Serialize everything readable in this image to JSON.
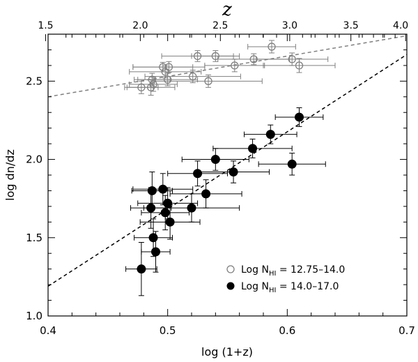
{
  "chart_data": {
    "type": "scatter",
    "title": "",
    "xlabel": "log (1+z)",
    "ylabel": "log dn/dz",
    "top_axis_label": "z",
    "xlim": [
      0.4,
      0.7
    ],
    "ylim": [
      1.0,
      2.8
    ],
    "x_ticks": [
      "0.4",
      "0.5",
      "0.6",
      "0.7"
    ],
    "y_ticks": [
      "1.0",
      "1.5",
      "2.0",
      "2.5"
    ],
    "top_ticks": [
      "1.5",
      "2.0",
      "2.5",
      "3.0",
      "3.5",
      "4.0"
    ],
    "legend_position": "bottom-right",
    "series": [
      {
        "name": "Log N_HI = 12.75-14.0",
        "legend_prefix": "Log N",
        "legend_sub": "HI",
        "legend_suffix": " = 12.75–14.0",
        "marker": "open-circle",
        "color": "#7f7f7f",
        "points": [
          {
            "x": 0.478,
            "y": 2.46,
            "xerr": 0.014,
            "yerr": 0.04
          },
          {
            "x": 0.486,
            "y": 2.46,
            "xerr": 0.02,
            "yerr": 0.05
          },
          {
            "x": 0.487,
            "y": 2.51,
            "xerr": 0.015,
            "yerr": 0.04
          },
          {
            "x": 0.488,
            "y": 2.48,
            "xerr": 0.02,
            "yerr": 0.045
          },
          {
            "x": 0.496,
            "y": 2.59,
            "xerr": 0.025,
            "yerr": 0.03
          },
          {
            "x": 0.498,
            "y": 2.56,
            "xerr": 0.03,
            "yerr": 0.04
          },
          {
            "x": 0.5,
            "y": 2.51,
            "xerr": 0.025,
            "yerr": 0.04
          },
          {
            "x": 0.501,
            "y": 2.59,
            "xerr": 0.03,
            "yerr": 0.035
          },
          {
            "x": 0.521,
            "y": 2.53,
            "xerr": 0.04,
            "yerr": 0.04
          },
          {
            "x": 0.525,
            "y": 2.66,
            "xerr": 0.03,
            "yerr": 0.035
          },
          {
            "x": 0.534,
            "y": 2.5,
            "xerr": 0.045,
            "yerr": 0.04
          },
          {
            "x": 0.54,
            "y": 2.66,
            "xerr": 0.02,
            "yerr": 0.035
          },
          {
            "x": 0.556,
            "y": 2.6,
            "xerr": 0.025,
            "yerr": 0.04
          },
          {
            "x": 0.572,
            "y": 2.64,
            "xerr": 0.03,
            "yerr": 0.035
          },
          {
            "x": 0.587,
            "y": 2.72,
            "xerr": 0.02,
            "yerr": 0.04
          },
          {
            "x": 0.604,
            "y": 2.64,
            "xerr": 0.03,
            "yerr": 0.04
          },
          {
            "x": 0.61,
            "y": 2.6,
            "xerr": 0.03,
            "yerr": 0.045
          }
        ],
        "fit": {
          "x": [
            0.4,
            0.7
          ],
          "y": [
            2.4,
            2.79
          ]
        }
      },
      {
        "name": "Log N_HI = 14.0-17.0",
        "legend_prefix": "Log N",
        "legend_sub": "HI",
        "legend_suffix": " = 14.0–17.0",
        "marker": "filled-circle",
        "color": "#000000",
        "points": [
          {
            "x": 0.478,
            "y": 1.3,
            "xerr": 0.013,
            "yerr": 0.17
          },
          {
            "x": 0.486,
            "y": 1.69,
            "xerr": 0.017,
            "yerr": 0.13
          },
          {
            "x": 0.487,
            "y": 1.8,
            "xerr": 0.017,
            "yerr": 0.12
          },
          {
            "x": 0.488,
            "y": 1.5,
            "xerr": 0.016,
            "yerr": 0.12
          },
          {
            "x": 0.49,
            "y": 1.41,
            "xerr": 0.012,
            "yerr": 0.13
          },
          {
            "x": 0.496,
            "y": 1.81,
            "xerr": 0.025,
            "yerr": 0.1
          },
          {
            "x": 0.498,
            "y": 1.66,
            "xerr": 0.02,
            "yerr": 0.11
          },
          {
            "x": 0.5,
            "y": 1.72,
            "xerr": 0.025,
            "yerr": 0.1
          },
          {
            "x": 0.502,
            "y": 1.6,
            "xerr": 0.025,
            "yerr": 0.11
          },
          {
            "x": 0.52,
            "y": 1.69,
            "xerr": 0.04,
            "yerr": 0.09
          },
          {
            "x": 0.525,
            "y": 1.91,
            "xerr": 0.025,
            "yerr": 0.08
          },
          {
            "x": 0.532,
            "y": 1.78,
            "xerr": 0.03,
            "yerr": 0.09
          },
          {
            "x": 0.54,
            "y": 2.0,
            "xerr": 0.028,
            "yerr": 0.07
          },
          {
            "x": 0.555,
            "y": 1.92,
            "xerr": 0.03,
            "yerr": 0.07
          },
          {
            "x": 0.571,
            "y": 2.07,
            "xerr": 0.033,
            "yerr": 0.06
          },
          {
            "x": 0.586,
            "y": 2.16,
            "xerr": 0.022,
            "yerr": 0.06
          },
          {
            "x": 0.604,
            "y": 1.97,
            "xerr": 0.028,
            "yerr": 0.07
          },
          {
            "x": 0.61,
            "y": 2.27,
            "xerr": 0.02,
            "yerr": 0.06
          }
        ],
        "fit": {
          "x": [
            0.4,
            0.7
          ],
          "y": [
            1.19,
            2.67
          ]
        }
      }
    ]
  }
}
